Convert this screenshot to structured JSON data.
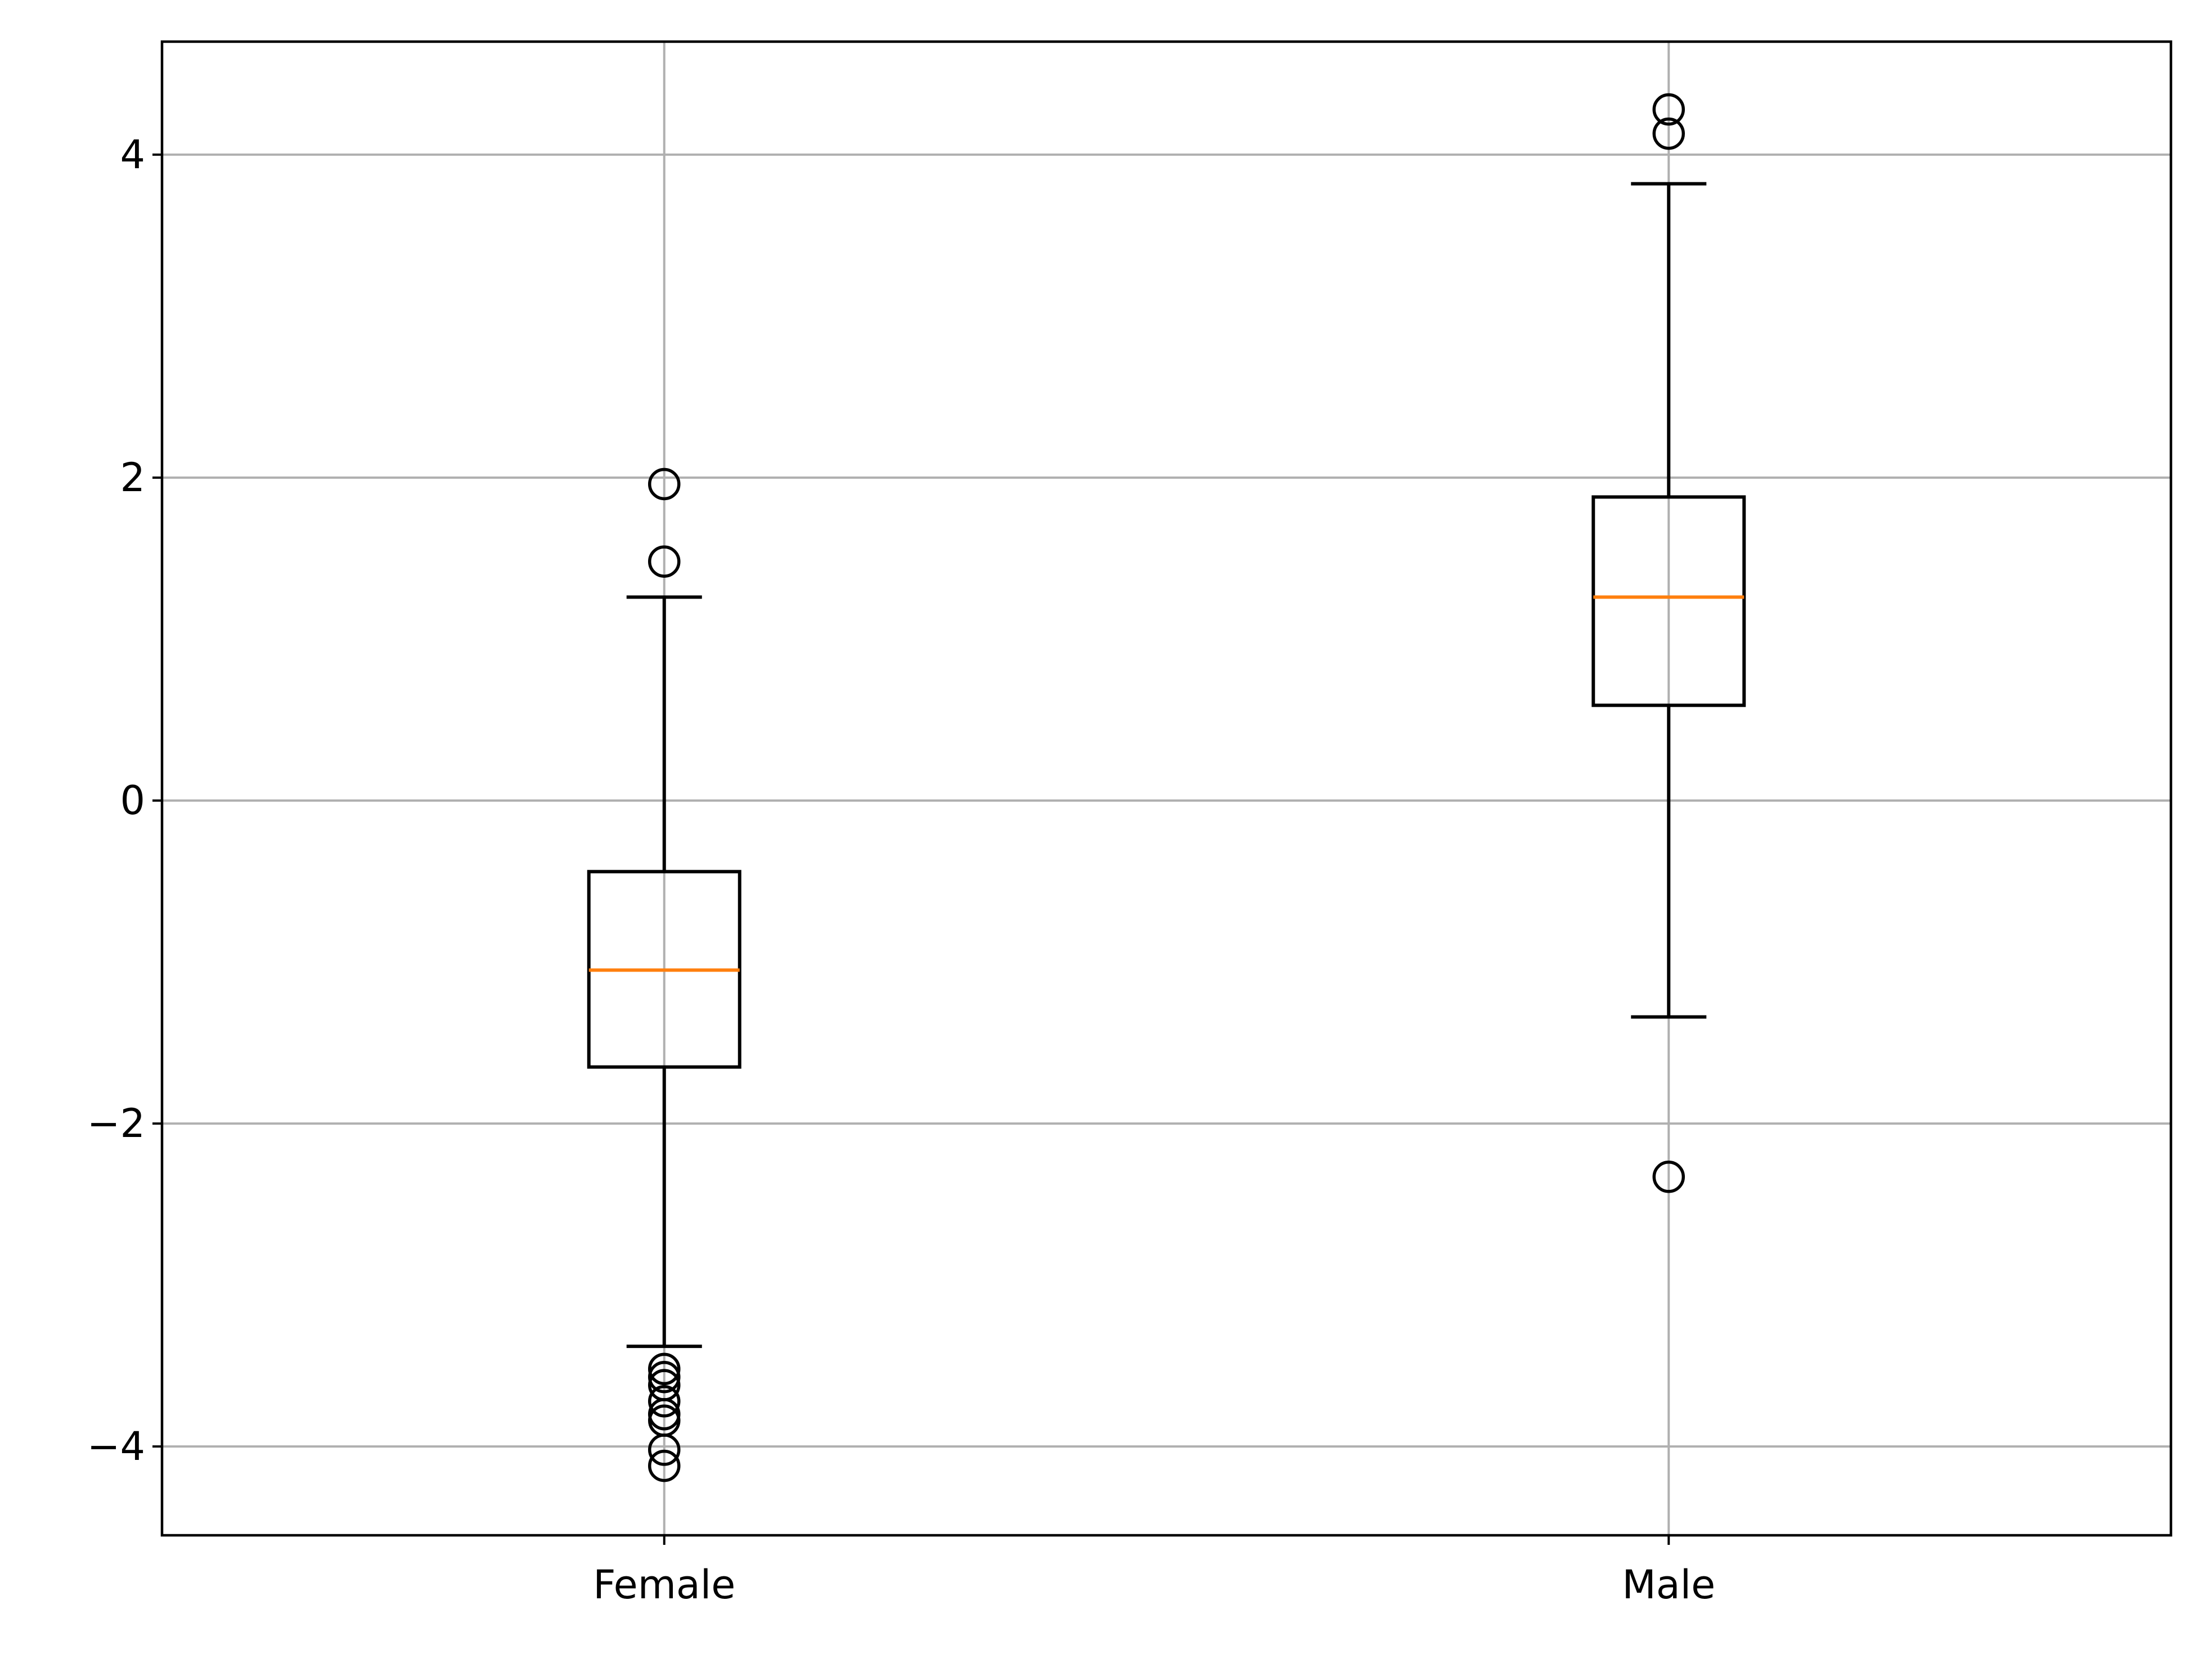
{
  "chart_data": {
    "type": "boxplot",
    "title": "",
    "xlabel": "",
    "ylabel": "",
    "categories": [
      "Female",
      "Male"
    ],
    "ylim": [
      -4.55,
      4.7
    ],
    "yticks": [
      -4,
      -2,
      0,
      2,
      4
    ],
    "ytick_labels": [
      "−4",
      "−2",
      "0",
      "2",
      "4"
    ],
    "grid": true,
    "colors": {
      "box": "#000000",
      "median": "#ff7f0e",
      "grid": "#b0b0b0",
      "axis": "#000000",
      "background": "#ffffff"
    },
    "boxes": [
      {
        "name": "Female",
        "whisker_low": -3.38,
        "q1": -1.65,
        "median": -1.05,
        "q3": -0.44,
        "whisker_high": 1.26,
        "outliers": [
          1.96,
          1.48,
          -3.52,
          -3.57,
          -3.62,
          -3.72,
          -3.8,
          -3.84,
          -4.02,
          -4.12
        ]
      },
      {
        "name": "Male",
        "whisker_low": -1.34,
        "q1": 0.59,
        "median": 1.26,
        "q3": 1.88,
        "whisker_high": 3.82,
        "outliers": [
          4.28,
          4.13,
          -2.33
        ]
      }
    ]
  }
}
